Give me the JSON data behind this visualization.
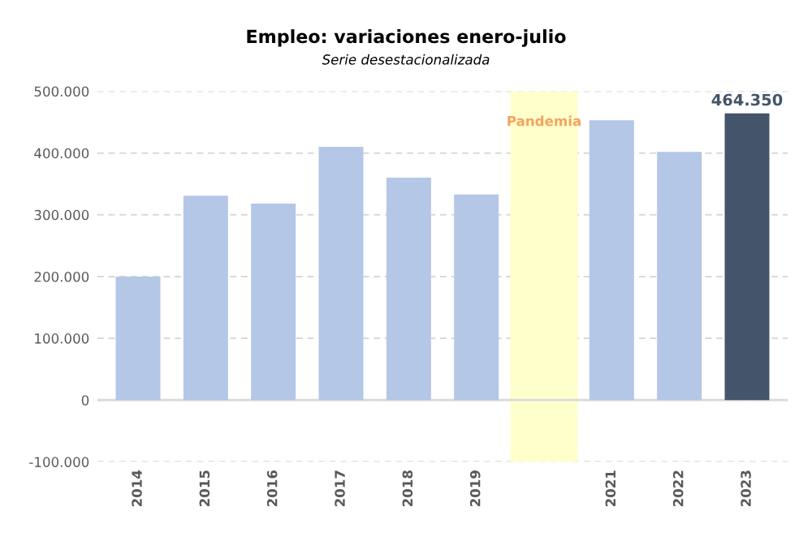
{
  "chart_data": {
    "type": "bar",
    "title": "Empleo: variaciones enero-julio",
    "subtitle": "Serie desestacionalizada",
    "categories": [
      "2014",
      "2015",
      "2016",
      "2017",
      "2018",
      "2019",
      null,
      "2021",
      "2022",
      "2023"
    ],
    "values": [
      200000,
      331000,
      318000,
      410000,
      360000,
      333000,
      null,
      453000,
      402000,
      464350
    ],
    "colors": [
      "#b4c7e7",
      "#b4c7e7",
      "#b4c7e7",
      "#b4c7e7",
      "#b4c7e7",
      "#b4c7e7",
      "#b4c7e7",
      "#b4c7e7",
      "#b4c7e7",
      "#44546a"
    ],
    "value_labels": [
      null,
      null,
      null,
      null,
      null,
      null,
      null,
      null,
      null,
      "464.350"
    ],
    "ylim": [
      -100000,
      500000
    ],
    "yticks": [
      {
        "value": -100000,
        "label": "-100.000"
      },
      {
        "value": 0,
        "label": "0"
      },
      {
        "value": 100000,
        "label": "100.000"
      },
      {
        "value": 200000,
        "label": "200.000"
      },
      {
        "value": 300000,
        "label": "300.000"
      },
      {
        "value": 400000,
        "label": "400.000"
      },
      {
        "value": 500000,
        "label": "500.000"
      }
    ],
    "annotations": [
      "Pandemia"
    ],
    "grid": "y"
  }
}
